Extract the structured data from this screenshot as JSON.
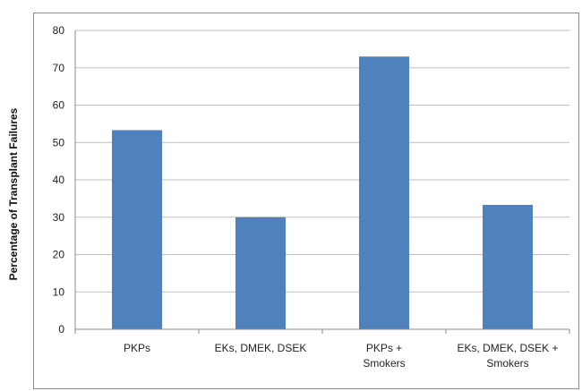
{
  "chart_data": {
    "type": "bar",
    "categories": [
      [
        "PKPs"
      ],
      [
        "EKs, DMEK, DSEK"
      ],
      [
        "PKPs +",
        "Smokers"
      ],
      [
        "EKs, DMEK, DSEK  +",
        "Smokers"
      ]
    ],
    "values": [
      53.3,
      30.0,
      73.0,
      33.3
    ],
    "title": "",
    "xlabel": "",
    "ylabel": "Percentage of Transplant Failures",
    "ylim": [
      0,
      80
    ],
    "yticks": [
      0,
      10,
      20,
      30,
      40,
      50,
      60,
      70,
      80
    ],
    "grid": true,
    "legend": "none",
    "colors": {
      "bar": "#4f81bd",
      "grid": "#bfbfbf",
      "axis": "#8c8c8c"
    }
  }
}
